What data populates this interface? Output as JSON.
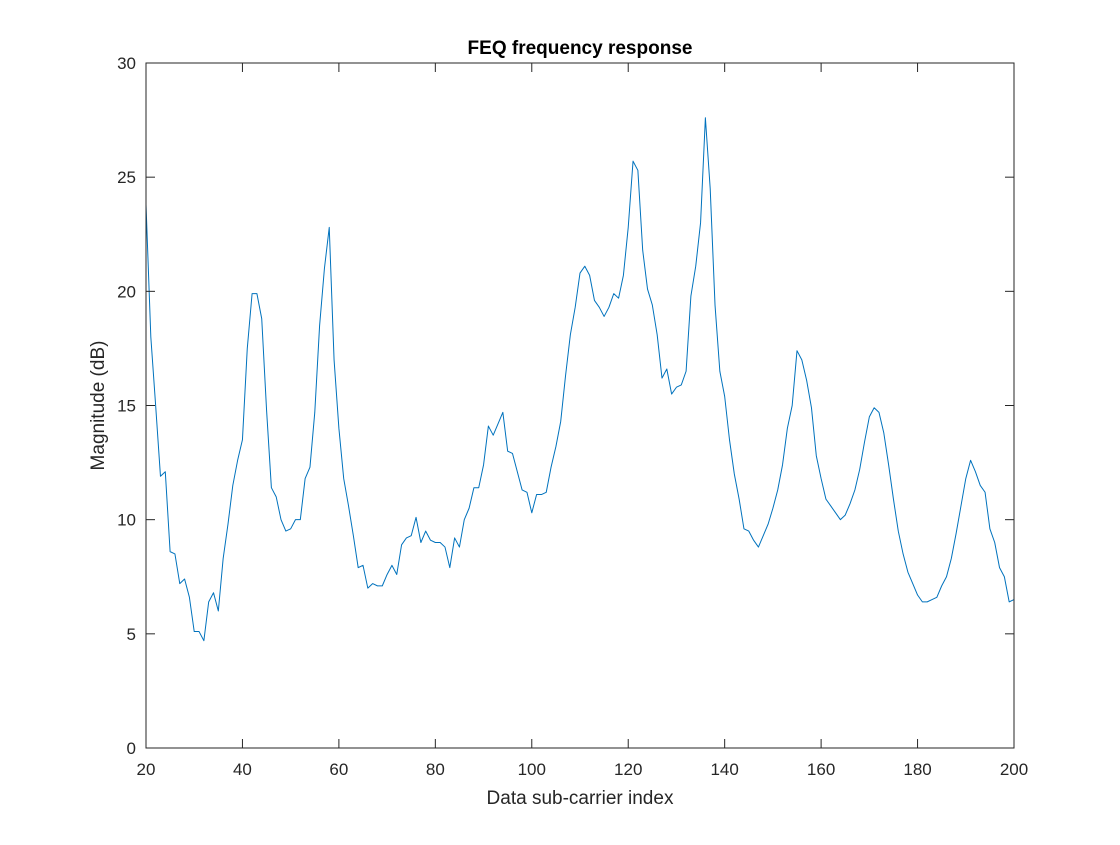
{
  "chart_data": {
    "type": "line",
    "title": "FEQ frequency response",
    "xlabel": "Data sub-carrier index",
    "ylabel": "Magnitude (dB)",
    "xlim": [
      20,
      200
    ],
    "ylim": [
      0,
      30
    ],
    "xticks": [
      20,
      40,
      60,
      80,
      100,
      120,
      140,
      160,
      180,
      200
    ],
    "yticks": [
      0,
      5,
      10,
      15,
      20,
      25,
      30
    ],
    "grid": false,
    "line_color": "#0072BD",
    "series": [
      {
        "x": [
          20,
          21,
          22,
          23,
          24,
          25,
          26,
          27,
          28,
          29,
          30,
          31,
          32,
          33,
          34,
          35,
          36,
          37,
          38,
          39,
          40,
          41,
          42,
          43,
          44,
          45,
          46,
          47,
          48,
          49,
          50,
          51,
          52,
          53,
          54,
          55,
          56,
          57,
          58,
          59,
          60,
          61,
          62,
          63,
          64,
          65,
          66,
          67,
          68,
          69,
          70,
          71,
          72,
          73,
          74,
          75,
          76,
          77,
          78,
          79,
          80,
          81,
          82,
          83,
          84,
          85,
          86,
          87,
          88,
          89,
          90,
          91,
          92,
          93,
          94,
          95,
          96,
          97,
          98,
          99,
          100,
          101,
          102,
          103,
          104,
          105,
          106,
          107,
          108,
          109,
          110,
          111,
          112,
          113,
          114,
          115,
          116,
          117,
          118,
          119,
          120,
          121,
          122,
          123,
          124,
          125,
          126,
          127,
          128,
          129,
          130,
          131,
          132,
          133,
          134,
          135,
          136,
          137,
          138,
          139,
          140,
          141,
          142,
          143,
          144,
          145,
          146,
          147,
          148,
          149,
          150,
          151,
          152,
          153,
          154,
          155,
          156,
          157,
          158,
          159,
          160,
          161,
          162,
          163,
          164,
          165,
          166,
          167,
          168,
          169,
          170,
          171,
          172,
          173,
          174,
          175,
          176,
          177,
          178,
          179,
          180,
          181,
          182,
          183,
          184,
          185,
          186,
          187,
          188,
          189,
          190,
          191,
          192,
          193,
          194,
          195,
          196,
          197,
          198,
          199,
          200
        ],
        "y": [
          23.8,
          18.0,
          15.0,
          11.9,
          12.1,
          8.6,
          8.5,
          7.2,
          7.4,
          6.6,
          5.1,
          5.1,
          4.7,
          6.4,
          6.8,
          6.0,
          8.3,
          9.8,
          11.5,
          12.6,
          13.5,
          17.5,
          19.9,
          19.9,
          18.8,
          14.8,
          11.4,
          11.0,
          10.0,
          9.5,
          9.6,
          10.0,
          10.0,
          11.8,
          12.3,
          14.7,
          18.5,
          21.0,
          22.8,
          17.0,
          14.0,
          11.8,
          10.6,
          9.3,
          7.9,
          8.0,
          7.0,
          7.2,
          7.1,
          7.1,
          7.6,
          8.0,
          7.6,
          8.9,
          9.2,
          9.3,
          10.1,
          9.0,
          9.5,
          9.1,
          9.0,
          9.0,
          8.8,
          7.9,
          9.2,
          8.8,
          10.0,
          10.5,
          11.4,
          11.4,
          12.4,
          14.1,
          13.7,
          14.2,
          14.7,
          13.0,
          12.9,
          12.1,
          11.3,
          11.2,
          10.3,
          11.1,
          11.1,
          11.2,
          12.3,
          13.2,
          14.3,
          16.3,
          18.1,
          19.3,
          20.8,
          21.1,
          20.7,
          19.6,
          19.3,
          18.9,
          19.3,
          19.9,
          19.7,
          20.7,
          22.8,
          25.7,
          25.3,
          21.8,
          20.1,
          19.4,
          18.1,
          16.2,
          16.6,
          15.5,
          15.8,
          15.9,
          16.5,
          19.8,
          21.1,
          23.0,
          27.6,
          24.5,
          19.4,
          16.5,
          15.4,
          13.5,
          12.0,
          10.9,
          9.6,
          9.5,
          9.1,
          8.8,
          9.3,
          9.8,
          10.5,
          11.3,
          12.4,
          14.0,
          15.0,
          17.4,
          17.0,
          16.1,
          14.9,
          12.8,
          11.8,
          10.9,
          10.6,
          10.3,
          10.0,
          10.2,
          10.7,
          11.3,
          12.2,
          13.4,
          14.5,
          14.9,
          14.7,
          13.8,
          12.4,
          10.9,
          9.5,
          8.5,
          7.7,
          7.2,
          6.7,
          6.4,
          6.4,
          6.5,
          6.6,
          7.1,
          7.5,
          8.3,
          9.4,
          10.6,
          11.8,
          12.6,
          12.1,
          11.5,
          11.2,
          9.6,
          9.0,
          7.9,
          7.5,
          6.4,
          6.5
        ]
      }
    ]
  }
}
